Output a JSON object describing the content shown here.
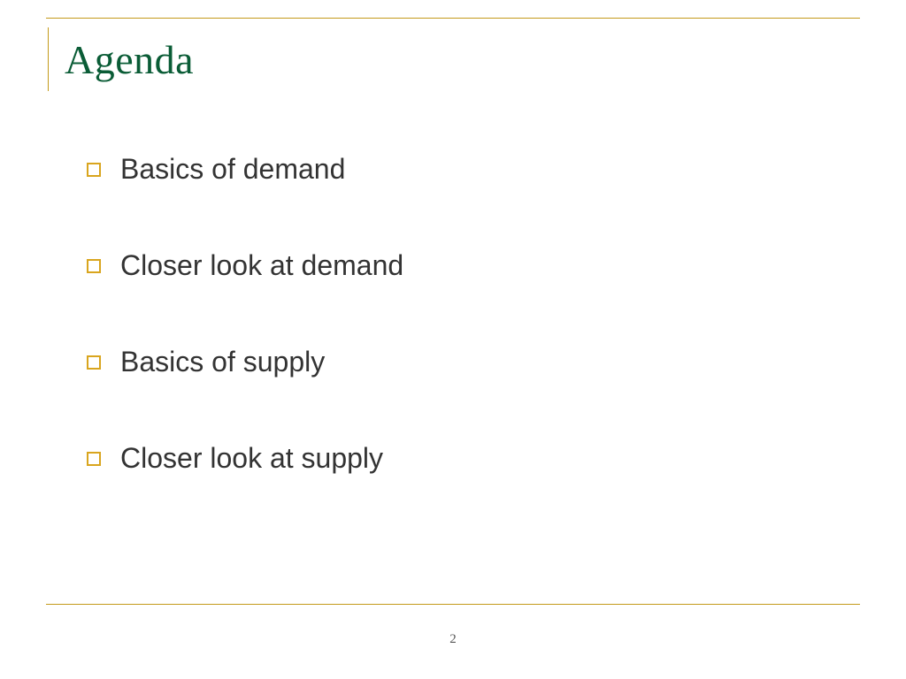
{
  "slide": {
    "title": "Agenda",
    "title_color": "#0a5c36",
    "title_fontsize": 46,
    "title_font_family": "Georgia, serif",
    "bullets": [
      "Basics of demand",
      "Closer look at demand",
      "Basics of supply",
      "Closer look at supply"
    ],
    "bullet_fontsize": 32,
    "bullet_text_color": "#333333",
    "bullet_square_color": "#d9a51e",
    "rule_color": "#c49a1a",
    "background_color": "#ffffff",
    "page_number": "2",
    "page_number_color": "#555555"
  }
}
